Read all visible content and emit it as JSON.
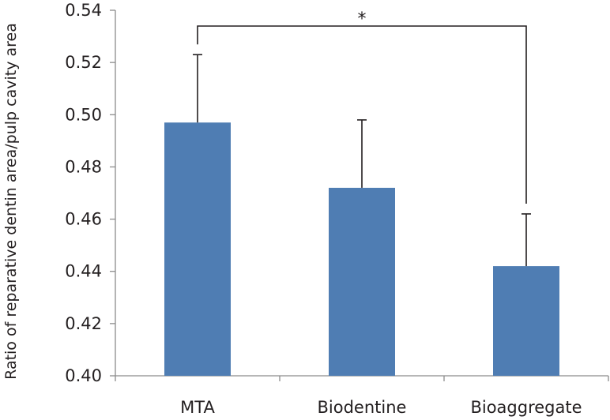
{
  "chart_data": {
    "type": "bar",
    "title": "",
    "xlabel": "",
    "ylabel": "Ratio of reparative dentin area/pulp cavity area",
    "categories": [
      "MTA",
      "Biodentine",
      "Bioaggregate"
    ],
    "values": [
      0.497,
      0.472,
      0.442
    ],
    "error_upper": [
      0.523,
      0.498,
      0.462
    ],
    "ylim": [
      0.4,
      0.54
    ],
    "yticks": [
      0.4,
      0.42,
      0.44,
      0.46,
      0.48,
      0.5,
      0.52,
      0.54
    ],
    "ytick_labels": [
      "0.40",
      "0.42",
      "0.44",
      "0.46",
      "0.48",
      "0.50",
      "0.52",
      "0.54"
    ],
    "bar_color": "#4f7db3",
    "grid": false,
    "significance": {
      "from": "MTA",
      "to": "Bioaggregate",
      "label": "*"
    }
  }
}
